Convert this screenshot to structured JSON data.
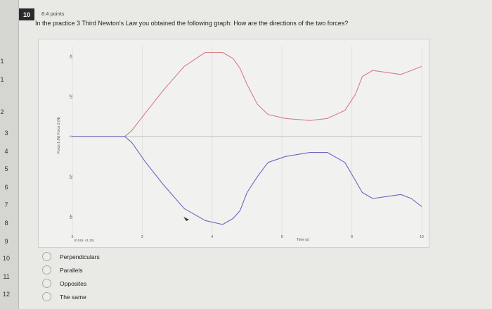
{
  "question_nav": [
    "1",
    "1",
    "2",
    "3",
    "4",
    "5",
    "6",
    "7",
    "8",
    "9",
    "10",
    "11",
    "12"
  ],
  "question": {
    "number": "10",
    "points": "8.4 points",
    "text": "In the practice 3 Third Newton's Law you obtained the following graph: How are the directions of the two forces?"
  },
  "graph": {
    "ylabel": "Force 1 (N)  Force 2 (N)",
    "xlabel": "Time (s)",
    "coordinate_readout": "(0.519, 41.30)",
    "y_ticks": [
      "40",
      "20",
      "0",
      "-20",
      "-40"
    ],
    "x_ticks": [
      "0",
      "2",
      "4",
      "6",
      "8",
      "10"
    ],
    "colors": {
      "force1": "#d77c87",
      "force2": "#6b64c1",
      "zero_line": "#c8c9c6"
    }
  },
  "chart_data": {
    "type": "line",
    "xlabel": "Time (s)",
    "ylabel": "Force 1 (N)  Force 2 (N)",
    "xlim": [
      0,
      10
    ],
    "ylim": [
      -50,
      45
    ],
    "series": [
      {
        "x": [
          0,
          1.5,
          1.7,
          2.1,
          2.6,
          3.2,
          3.8,
          4.3,
          4.6,
          4.8,
          5.0,
          5.3,
          5.6,
          6.1,
          6.8,
          7.3,
          7.8,
          8.1,
          8.3,
          8.6,
          9.0,
          9.4,
          9.7,
          10.0
        ],
        "y": [
          0,
          0,
          3,
          12,
          23,
          35,
          42,
          42,
          39,
          34,
          26,
          16,
          11,
          9,
          8,
          9,
          13,
          21,
          30,
          33,
          32,
          31,
          33,
          35
        ]
      },
      {
        "x": [
          0,
          1.5,
          1.7,
          2.1,
          2.6,
          3.2,
          3.8,
          4.3,
          4.6,
          4.8,
          5.0,
          5.3,
          5.6,
          6.1,
          6.8,
          7.3,
          7.8,
          8.1,
          8.3,
          8.6,
          9.0,
          9.4,
          9.7,
          10.0
        ],
        "y": [
          0,
          0,
          -3,
          -13,
          -24,
          -36,
          -42,
          -44,
          -41,
          -37,
          -28,
          -20,
          -13,
          -10,
          -8,
          -8,
          -13,
          -22,
          -28,
          -31,
          -30,
          -29,
          -31,
          -35
        ]
      }
    ]
  },
  "options": [
    "Perpendiculars",
    "Parallels",
    "Opposites",
    "The same"
  ]
}
